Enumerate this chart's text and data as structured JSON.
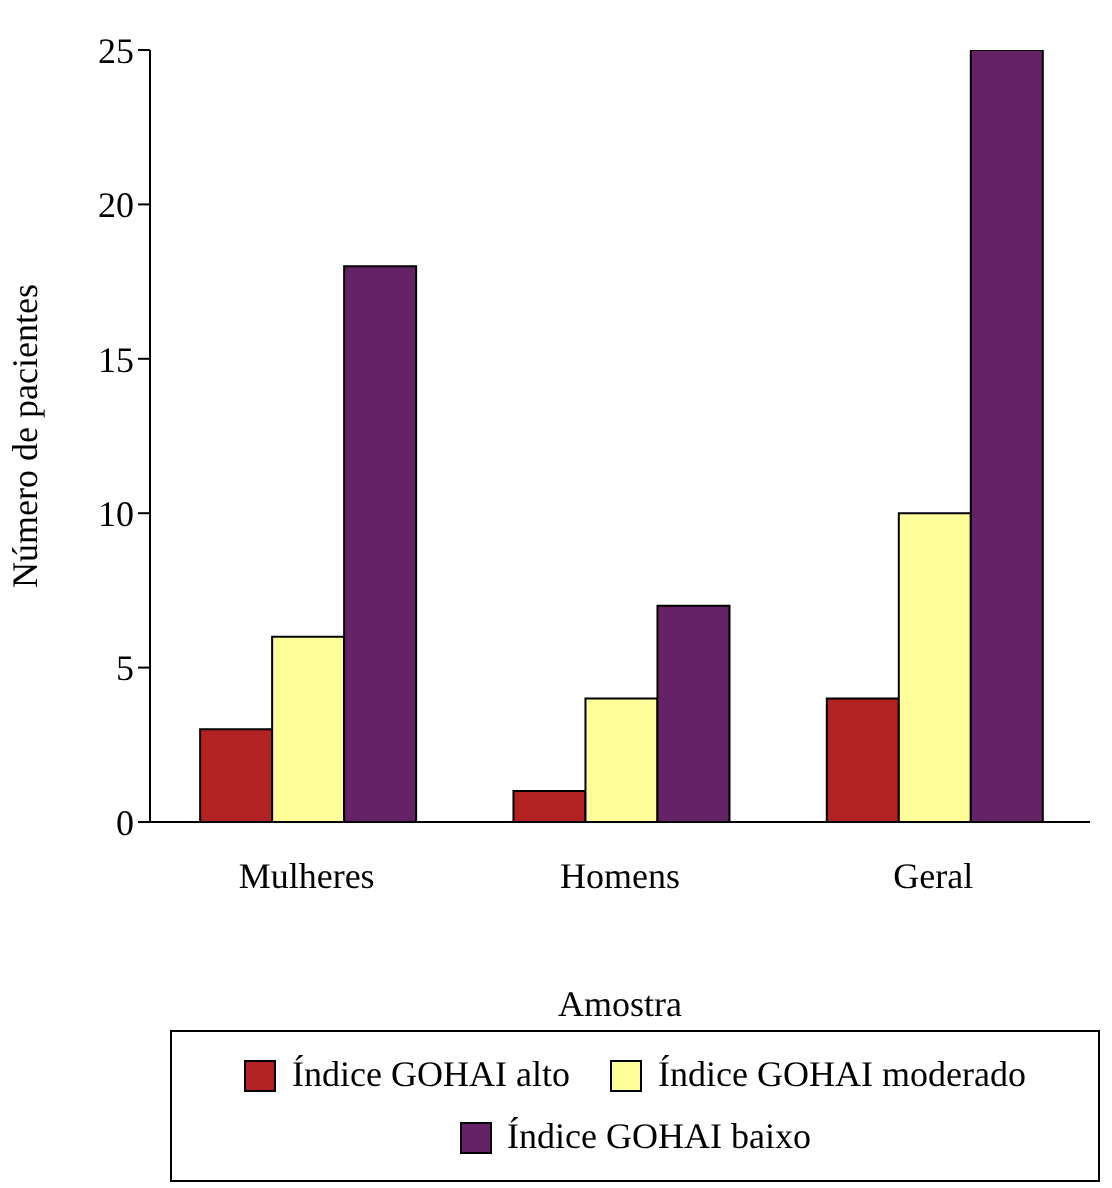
{
  "chart_data": {
    "type": "bar",
    "xlabel": "Amostra",
    "ylabel": "Número de pacientes",
    "categories": [
      "Mulheres",
      "Homens",
      "Geral"
    ],
    "series": [
      {
        "name": "Índice GOHAI alto",
        "color": "#b22222",
        "values": [
          3,
          1,
          4
        ]
      },
      {
        "name": "Índice GOHAI moderado",
        "color": "#ffff99",
        "values": [
          6,
          4,
          10
        ]
      },
      {
        "name": "Índice GOHAI baixo",
        "color": "#662266",
        "values": [
          18,
          7,
          25
        ]
      }
    ],
    "ylim": [
      0,
      25
    ],
    "yticks": [
      0,
      5,
      10,
      15,
      20,
      25
    ],
    "grid": false,
    "legend": "bottom"
  }
}
